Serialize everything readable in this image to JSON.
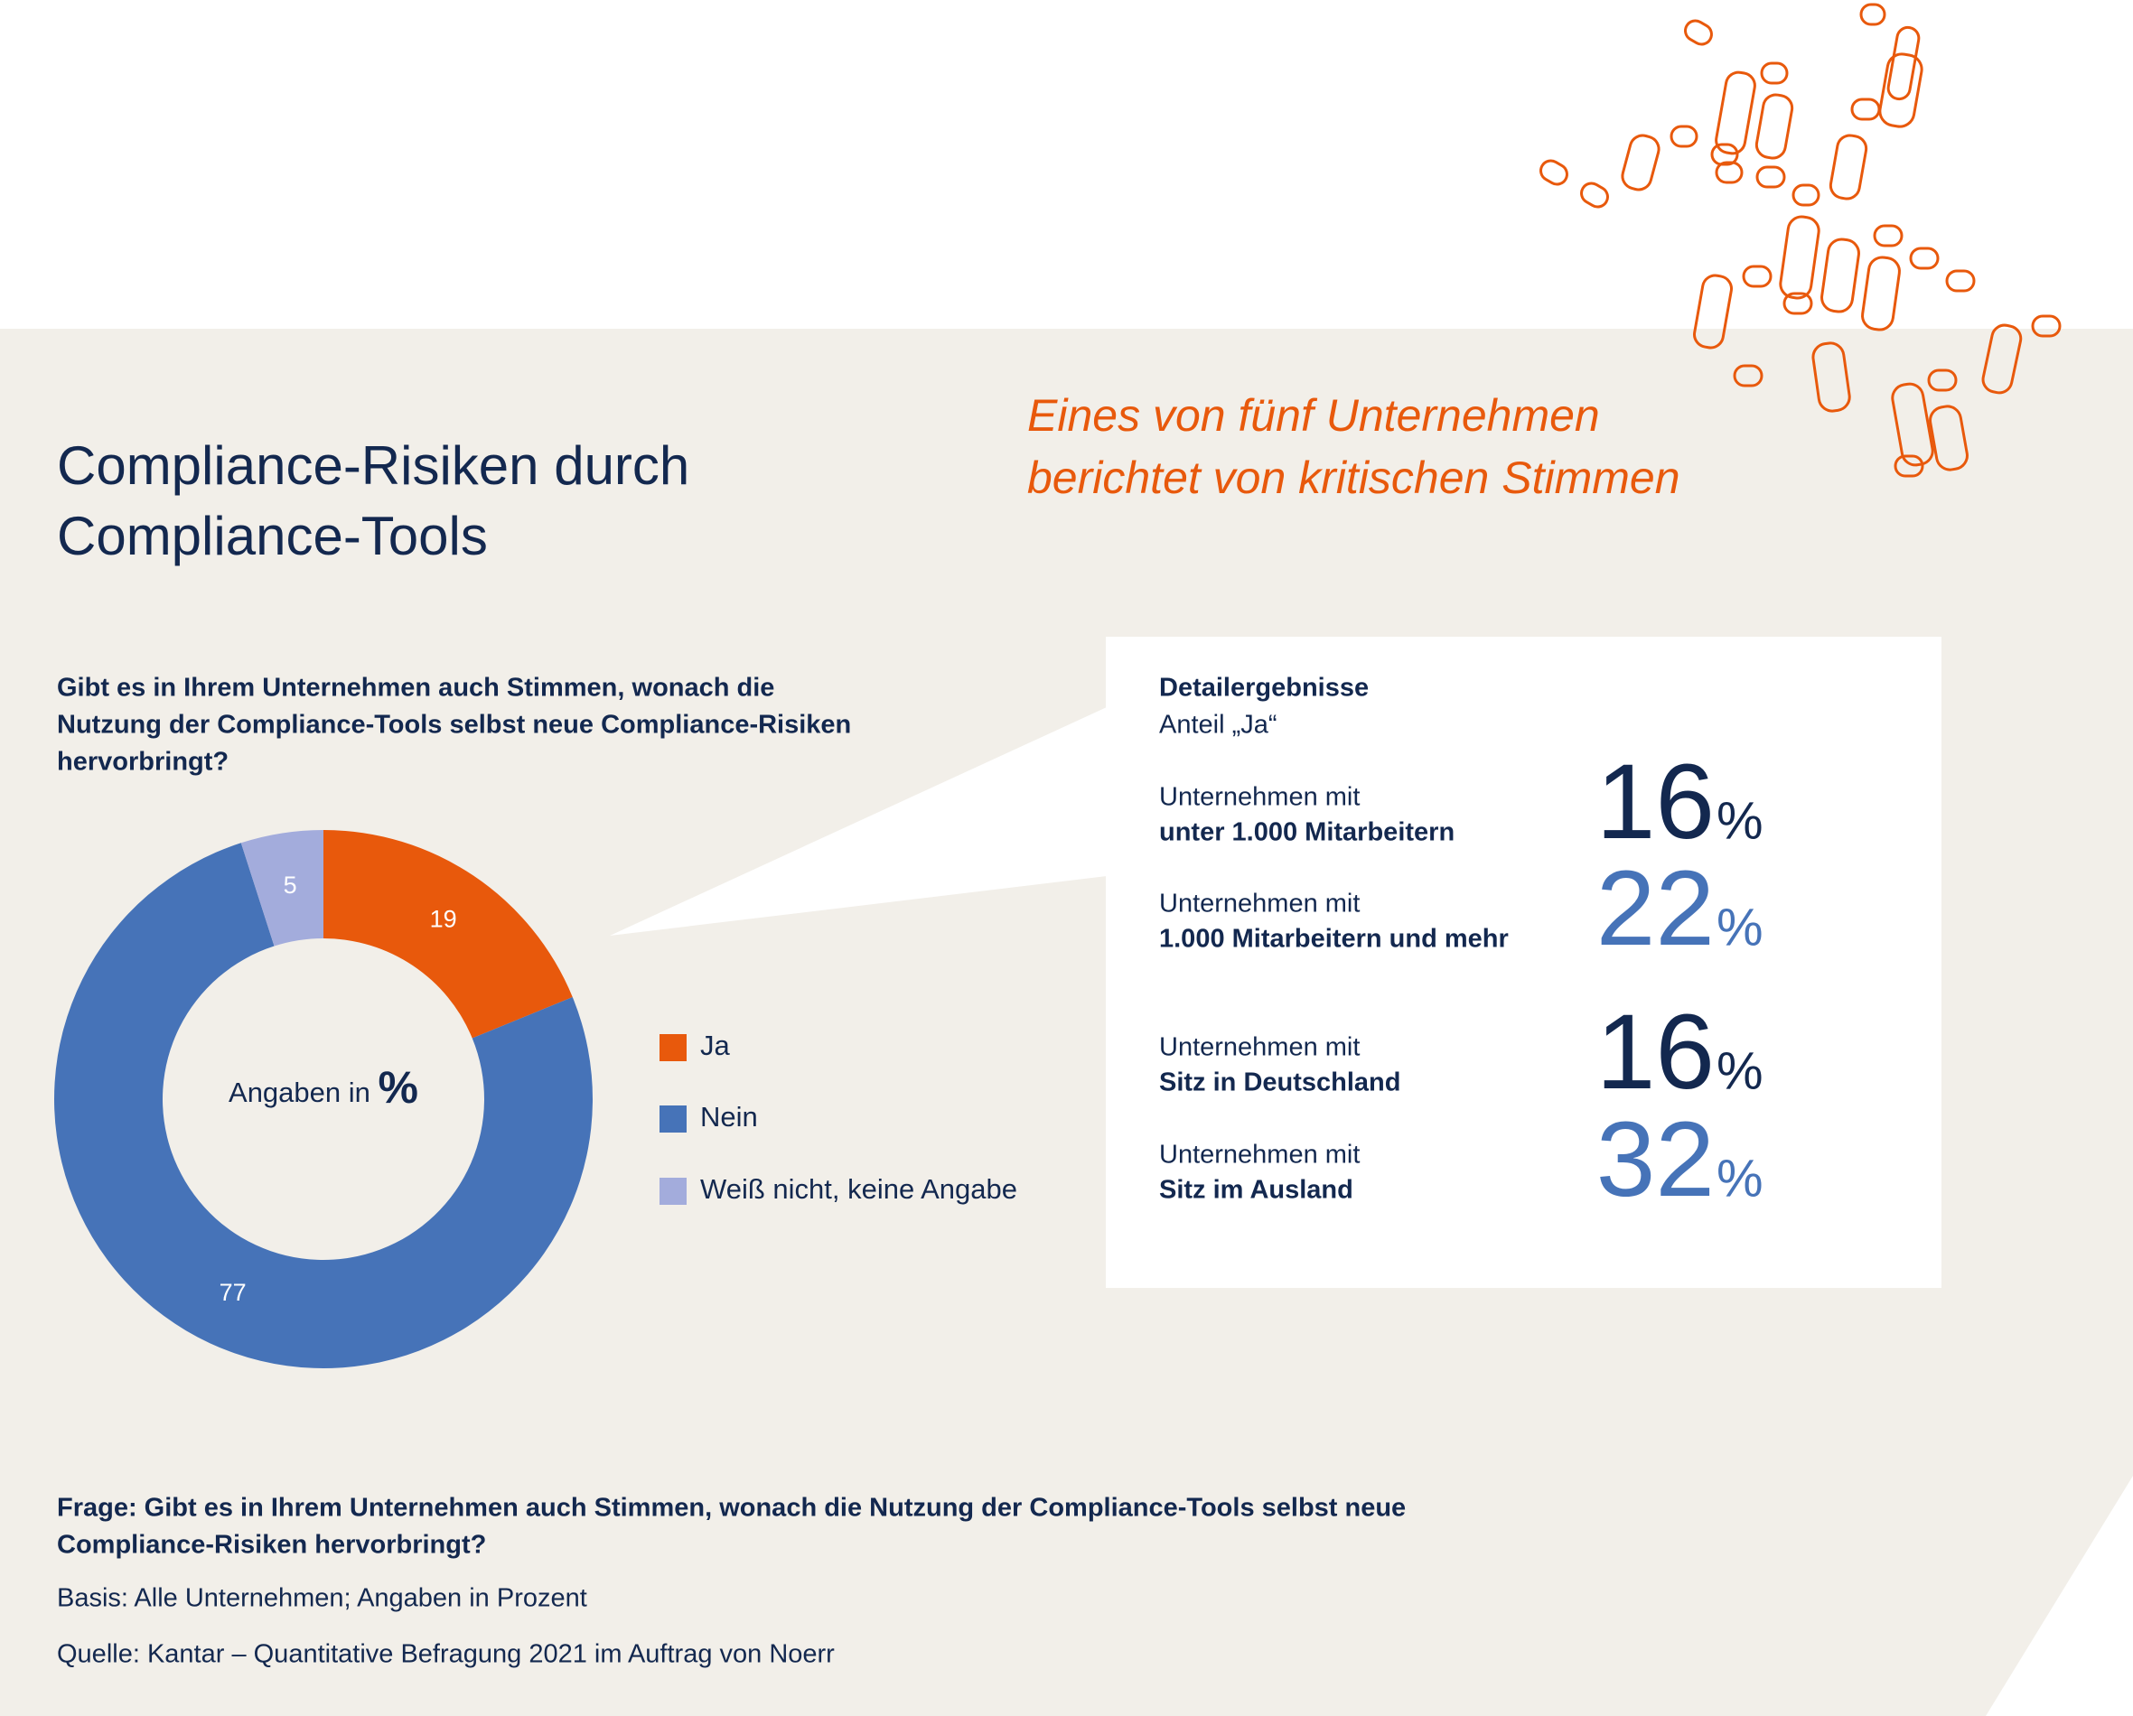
{
  "chart_data": {
    "type": "pie",
    "donut": true,
    "title": [
      "Compliance-Risiken durch",
      "Compliance-Tools"
    ],
    "subtitle": [
      "Eines von fünf Unternehmen",
      "berichtet von kritischen Stimmen"
    ],
    "question": [
      "Gibt es in Ihrem Unternehmen auch Stimmen, wonach die",
      "Nutzung der Compliance-Tools selbst neue Compliance-Risiken",
      "hervorbringt?"
    ],
    "categories": [
      "Ja",
      "Nein",
      "Weiß nicht, keine Angabe"
    ],
    "values": [
      19,
      77,
      5
    ],
    "colors": [
      "#e8590c",
      "#4673b8",
      "#a3acdc"
    ],
    "center_label": "Angaben in",
    "center_unit": "%"
  },
  "details": {
    "title": "Detailergebnisse",
    "subtitle": "Anteil „Ja“",
    "unit": "%",
    "rows": [
      {
        "label": "Unternehmen mit",
        "group": "unter 1.000 Mitarbeitern",
        "value": 16,
        "color": "#13284f"
      },
      {
        "label": "Unternehmen mit",
        "group": "1.000 Mitarbeitern und mehr",
        "value": 22,
        "color": "#4673b8"
      },
      {
        "label": "Unternehmen mit",
        "group": "Sitz in Deutschland",
        "value": 16,
        "color": "#13284f"
      },
      {
        "label": "Unternehmen mit",
        "group": "Sitz im Ausland",
        "value": 32,
        "color": "#4673b8"
      }
    ]
  },
  "footer": {
    "question": [
      "Frage: Gibt es in Ihrem Unternehmen auch Stimmen, wonach die Nutzung der Compliance-Tools selbst neue",
      "Compliance-Risiken hervorbringt?"
    ],
    "basis": "Basis: Alle Unternehmen; Angaben in Prozent",
    "source": "Quelle: Kantar – Quantitative Befragung 2021 im Auftrag von Noerr"
  }
}
